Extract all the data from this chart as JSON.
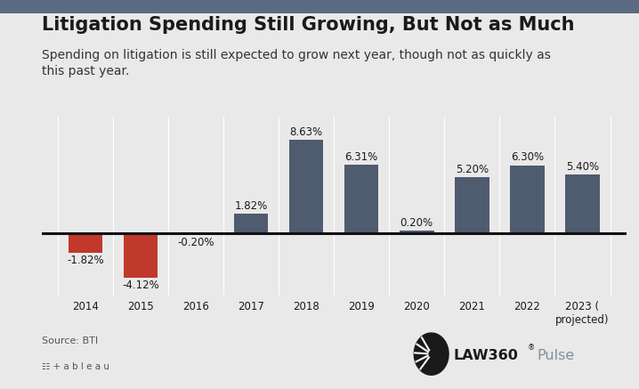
{
  "title": "Litigation Spending Still Growing, But Not as Much",
  "subtitle": "Spending on litigation is still expected to grow next year, though not as quickly as\nthis past year.",
  "categories": [
    "2014",
    "2015",
    "2016",
    "2017",
    "2018",
    "2019",
    "2020",
    "2021",
    "2022",
    "2023 (\nprojected)"
  ],
  "values": [
    -1.82,
    -4.12,
    -0.2,
    1.82,
    8.63,
    6.31,
    0.2,
    5.2,
    6.3,
    5.4
  ],
  "labels": [
    "-1.82%",
    "-4.12%",
    "-0.20%",
    "1.82%",
    "8.63%",
    "6.31%",
    "0.20%",
    "5.20%",
    "6.30%",
    "5.40%"
  ],
  "bar_colors_pos": "#4f5b6e",
  "bar_colors_neg": "#c0392b",
  "bg_color": "#e9e9e9",
  "plot_bg_color": "#e9e9e9",
  "title_color": "#1a1a1a",
  "subtitle_color": "#333333",
  "source_text": "Source: BTI",
  "source_color": "#555555",
  "zero_line_color": "#111111",
  "label_fontsize": 8.5,
  "title_fontsize": 15,
  "subtitle_fontsize": 10,
  "source_fontsize": 8,
  "ylim": [
    -5.8,
    10.8
  ],
  "law360_color": "#1a1a1a",
  "pulse_color": "#7f8fa6",
  "top_bar_color": "#5a6a80"
}
